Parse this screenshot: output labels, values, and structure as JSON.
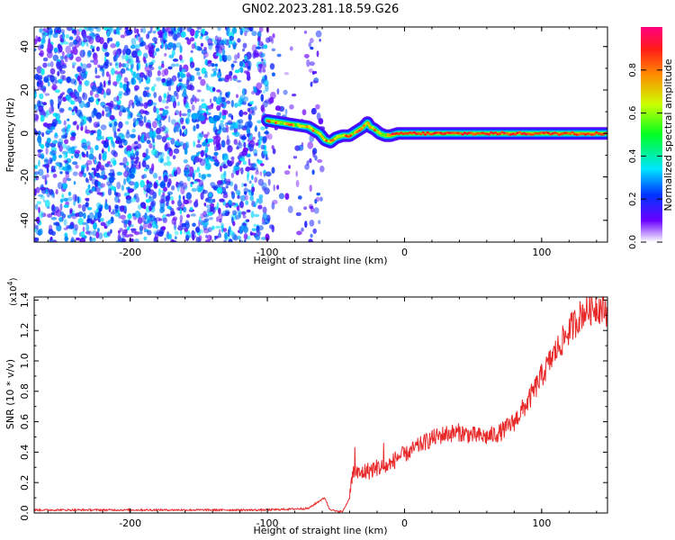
{
  "title": "GN02.2023.281.18.59.G26",
  "chart_data": [
    {
      "type": "heatmap",
      "xlabel": "Height of straight line (km)",
      "ylabel": "Frequency (Hz)",
      "xlim": [
        -270,
        148
      ],
      "ylim": [
        -50,
        49
      ],
      "x_ticks": [
        -200,
        -100,
        0,
        100
      ],
      "y_ticks": [
        -40,
        -20,
        0,
        20,
        40
      ],
      "x_tick_labels": [
        "-200",
        "-100",
        "0",
        "100"
      ],
      "y_tick_labels": [
        "-40",
        "-20",
        "0",
        "20",
        "40"
      ],
      "ridge": {
        "x": [
          -100,
          -90,
          -80,
          -70,
          -62,
          -58,
          -54,
          -50,
          -45,
          -40,
          -35,
          -30,
          -27,
          -25,
          -22,
          -18,
          -14,
          -10,
          -5,
          0,
          50,
          100,
          148
        ],
        "y": [
          6,
          5,
          4,
          3,
          0,
          -3,
          -4,
          -2,
          -1,
          -1,
          1,
          3,
          5,
          3,
          2,
          0,
          -1,
          -1,
          0,
          0,
          0,
          0,
          0
        ]
      },
      "noise_region_x": [
        -270,
        -60
      ],
      "colorbar": {
        "label": "Normalized spectral amplitude",
        "range": [
          0,
          1
        ],
        "ticks": [
          0.0,
          0.2,
          0.4,
          0.6,
          0.8
        ],
        "tick_labels": [
          "0.0",
          "0.2",
          "0.4",
          "0.6",
          "0.8"
        ]
      }
    },
    {
      "type": "line",
      "xlabel": "Height of straight line (km)",
      "ylabel": "SNR (10 * v/v)",
      "scale_note_base": "(x10",
      "scale_note_exp": "4",
      "scale_note_end": ")",
      "xlim": [
        -270,
        148
      ],
      "ylim": [
        0,
        1.42
      ],
      "x_ticks": [
        -200,
        -100,
        0,
        100
      ],
      "y_ticks": [
        0.0,
        0.2,
        0.4,
        0.6,
        0.8,
        1.0,
        1.2,
        1.4
      ],
      "x_tick_labels": [
        "-200",
        "-100",
        "0",
        "100"
      ],
      "y_tick_labels": [
        "0.0",
        "0.2",
        "0.4",
        "0.6",
        "0.8",
        "1.0",
        "1.2",
        "1.4"
      ],
      "series": [
        {
          "color": "#e8292a",
          "x": [
            -270,
            -200,
            -150,
            -100,
            -70,
            -62,
            -58,
            -55,
            -50,
            -45,
            -40,
            -38,
            -36,
            -33,
            -30,
            -25,
            -20,
            -15,
            -10,
            -5,
            0,
            10,
            20,
            30,
            40,
            50,
            60,
            70,
            80,
            90,
            100,
            110,
            120,
            130,
            140,
            148
          ],
          "y": [
            0.02,
            0.02,
            0.02,
            0.02,
            0.03,
            0.08,
            0.1,
            0.03,
            0.01,
            0.01,
            0.1,
            0.25,
            0.28,
            0.25,
            0.27,
            0.28,
            0.3,
            0.3,
            0.32,
            0.37,
            0.38,
            0.44,
            0.49,
            0.52,
            0.53,
            0.51,
            0.5,
            0.53,
            0.6,
            0.73,
            0.9,
            1.06,
            1.2,
            1.32,
            1.36,
            1.33
          ]
        }
      ]
    }
  ]
}
